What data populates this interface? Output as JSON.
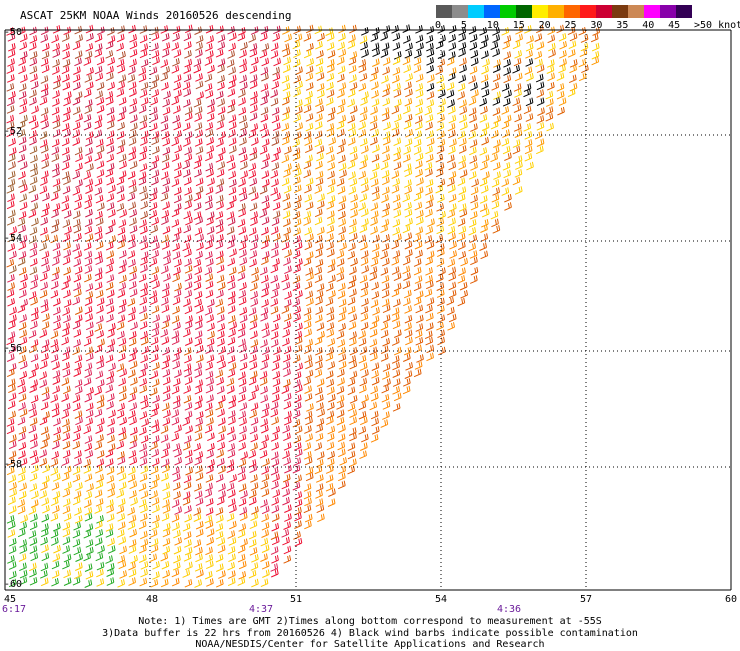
{
  "header": {
    "title": "ASCAT 25KM NOAA Winds 20160526 descending"
  },
  "legend": {
    "colors": [
      "#595959",
      "#8c8c8c",
      "#00ccff",
      "#0066ff",
      "#00cc00",
      "#006600",
      "#ffee00",
      "#ffb000",
      "#ff6600",
      "#ff1a1a",
      "#cc0033",
      "#7b3a10",
      "#cc8855",
      "#ff00ff",
      "#8800aa",
      "#330055"
    ],
    "labels": [
      "0",
      "5",
      "10",
      "15",
      "20",
      "25",
      "30",
      "35",
      "40",
      "45",
      ">50 knots"
    ]
  },
  "map": {
    "lat_labels": [
      "-50",
      "-52",
      "-54",
      "-56",
      "-58",
      "-60"
    ],
    "lon_labels": [
      "45",
      "48",
      "51",
      "54",
      "57",
      "60"
    ],
    "time_labels": [
      "6:17",
      "4:37",
      "4:36"
    ],
    "lat_range": [
      -60,
      -50
    ],
    "lon_range": [
      45,
      60
    ]
  },
  "notes": {
    "line1": "Note: 1) Times are GMT 2)Times along bottom correspond to measurement at -55S",
    "line2": "3)Data buffer is 22 hrs from 20160526 4) Black wind barbs indicate possible contamination",
    "line3": "NOAA/NESDIS/Center for Satellite Applications and Research"
  }
}
